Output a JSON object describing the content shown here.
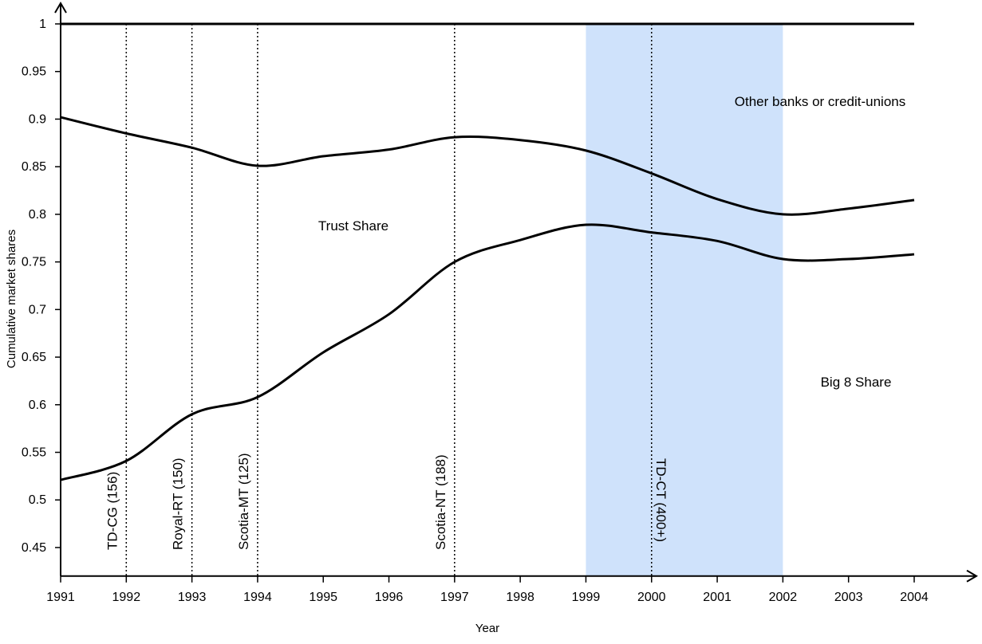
{
  "chart_data": {
    "type": "line",
    "x_label": "Year",
    "y_label": "Cumulative market shares",
    "x": [
      1991,
      1992,
      1993,
      1994,
      1995,
      1996,
      1997,
      1998,
      1999,
      2000,
      2001,
      2002,
      2003,
      2004
    ],
    "series": [
      {
        "color": "#000000",
        "values": [
          0.521,
          0.541,
          0.59,
          0.608,
          0.655,
          0.695,
          0.75,
          0.773,
          0.789,
          0.781,
          0.772,
          0.753,
          0.753,
          0.758
        ]
      },
      {
        "color": "#000000",
        "values": [
          0.902,
          0.885,
          0.87,
          0.851,
          0.861,
          0.868,
          0.881,
          0.878,
          0.867,
          0.843,
          0.816,
          0.8,
          0.806,
          0.815
        ]
      },
      {
        "color": "#000000",
        "values": [
          1,
          1,
          1,
          1,
          1,
          1,
          1,
          1,
          1,
          1,
          1,
          1,
          1,
          1
        ]
      }
    ],
    "xlim": [
      1991,
      2004
    ],
    "ylim": [
      0.42,
      1
    ],
    "xticks": [
      1991,
      1992,
      1993,
      1994,
      1995,
      1996,
      1997,
      1998,
      1999,
      2000,
      2001,
      2002,
      2003,
      2004
    ],
    "yticks": [
      0.45,
      0.5,
      0.55,
      0.6,
      0.65,
      0.7,
      0.75,
      0.8,
      0.85,
      0.9,
      0.95,
      1
    ],
    "shade": {
      "from": 1999,
      "to": 2002,
      "color": "#cfe2fb"
    },
    "events": [
      {
        "x": 1992,
        "label": "TD-CG (156)"
      },
      {
        "x": 1993,
        "label": "Royal-RT (150)"
      },
      {
        "x": 1994,
        "label": "Scotia-MT (125)"
      },
      {
        "x": 1997,
        "label": "Scotia-NT (188)"
      },
      {
        "x": 2000,
        "label": "TD-CT (400+)"
      }
    ],
    "annotations": [
      "Other banks or credit-unions",
      "Trust Share",
      "Big 8 Share"
    ]
  }
}
